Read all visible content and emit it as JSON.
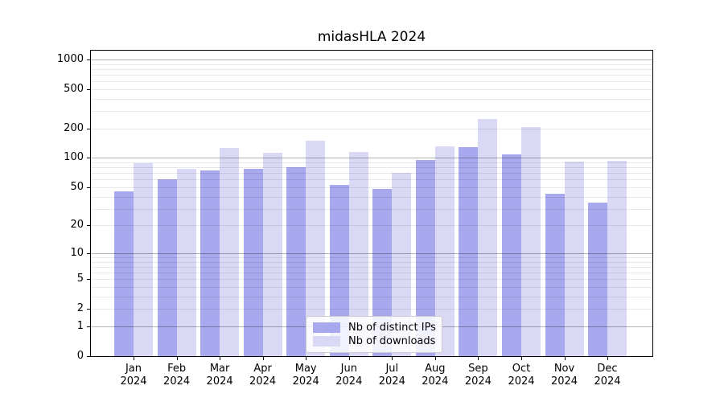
{
  "chart_data": {
    "type": "bar",
    "title": "midasHLA 2024",
    "categories": [
      "Jan 2024",
      "Feb 2024",
      "Mar 2024",
      "Apr 2024",
      "May 2024",
      "Jun 2024",
      "Jul 2024",
      "Aug 2024",
      "Sep 2024",
      "Oct 2024",
      "Nov 2024",
      "Dec 2024"
    ],
    "series": [
      {
        "name": "Nb of distinct IPs",
        "color": "#a8a8ef",
        "values": [
          45,
          60,
          75,
          78,
          81,
          53,
          48,
          96,
          130,
          108,
          43,
          35
        ]
      },
      {
        "name": "Nb of downloads",
        "color": "#d9d9f6",
        "values": [
          88,
          77,
          126,
          114,
          150,
          115,
          70,
          131,
          250,
          208,
          91,
          93
        ]
      }
    ],
    "xlabel": "",
    "ylabel": "",
    "yscale": "log1p",
    "ylim": [
      0,
      1225
    ],
    "yticks": [
      0,
      1,
      2,
      5,
      10,
      20,
      50,
      100,
      200,
      500,
      1000
    ],
    "grid": "horizontal-major-and-minor",
    "legend_position": "bottom-center",
    "colors": {
      "major_grid": "#b3b3b3",
      "minor_grid": "#e9e9e9",
      "axis": "#000000"
    }
  }
}
